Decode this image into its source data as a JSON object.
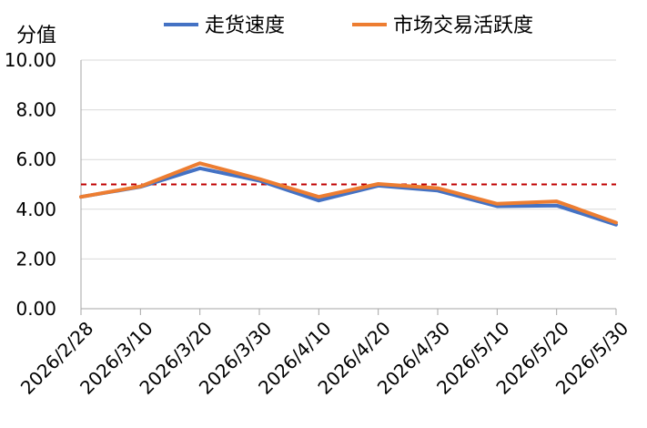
{
  "chart_data": {
    "type": "line",
    "title": "",
    "xlabel": "",
    "ylabel": "分值",
    "ylim": [
      0,
      10
    ],
    "yticks": [
      "0.00",
      "2.00",
      "4.00",
      "6.00",
      "8.00",
      "10.00"
    ],
    "x": [
      "2026/2/28",
      "2026/3/10",
      "2026/3/20",
      "2026/3/30",
      "2026/4/10",
      "2026/4/20",
      "2026/4/30",
      "2026/5/10",
      "2026/5/20",
      "2026/5/30"
    ],
    "series": [
      {
        "name": "走货速度",
        "color": "#4472C4",
        "values": [
          4.5,
          4.9,
          5.65,
          5.15,
          4.35,
          4.95,
          4.75,
          4.12,
          4.15,
          3.38
        ]
      },
      {
        "name": "市场交易活跃度",
        "color": "#ED7D31",
        "values": [
          4.5,
          4.92,
          5.85,
          5.22,
          4.5,
          5.02,
          4.85,
          4.22,
          4.32,
          3.46
        ]
      }
    ],
    "reference_line": {
      "value": 5.0,
      "color": "#C00000",
      "style": "dashed"
    },
    "grid": "horizontal",
    "legend_position": "top"
  }
}
